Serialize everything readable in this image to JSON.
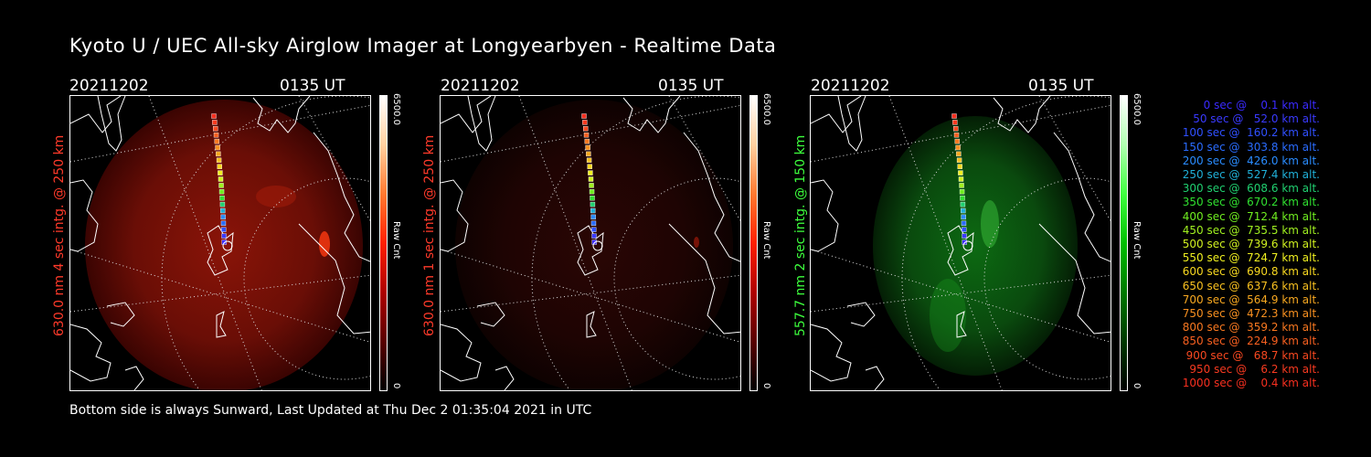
{
  "title": "Kyoto U / UEC All-sky Airglow Imager at Longyearbyen - Realtime Data",
  "footer": "Bottom side is always Sunward, Last Updated at Thu Dec  2 01:35:04 2021 in UTC",
  "panels": [
    {
      "date": "20211202",
      "time": "0135 UT",
      "axis_label": "630.0 nm 4 sec intg. @ 250 km",
      "label_color": "#ff3a2a",
      "cbar_max": "6500.0",
      "cbar_unit": "Raw Cnt",
      "cbar_min": "0",
      "glow": "red-strong"
    },
    {
      "date": "20211202",
      "time": "0135 UT",
      "axis_label": "630.0 nm 1 sec intg. @ 250 km",
      "label_color": "#ff3a2a",
      "cbar_max": "6500.0",
      "cbar_unit": "Raw Cnt",
      "cbar_min": "0",
      "glow": "red-faint"
    },
    {
      "date": "20211202",
      "time": "0135 UT",
      "axis_label": "557.7 nm 2 sec intg. @ 150 km",
      "label_color": "#3dff3d",
      "cbar_max": "6500.0",
      "cbar_unit": "Raw Cnt",
      "cbar_min": "0",
      "glow": "green"
    }
  ],
  "colors": {
    "red_colorbar": [
      "#000000",
      "#5a0000",
      "#b00000",
      "#ff2000",
      "#ff7a30",
      "#ffd2a0",
      "#ffffff"
    ],
    "green_colorbar": [
      "#000000",
      "#003a00",
      "#007a00",
      "#00c000",
      "#40ff40",
      "#b0ffb0",
      "#ffffff"
    ]
  },
  "legend": [
    {
      "text": "   0 sec @    0.1 km alt.",
      "color": "#3a2aff"
    },
    {
      "text": "  50 sec @   52.0 km alt.",
      "color": "#3a3aff"
    },
    {
      "text": " 100 sec @  160.2 km alt.",
      "color": "#3050ff"
    },
    {
      "text": " 150 sec @  303.8 km alt.",
      "color": "#2a6cff"
    },
    {
      "text": " 200 sec @  426.0 km alt.",
      "color": "#2a8cff"
    },
    {
      "text": " 250 sec @  527.4 km alt.",
      "color": "#20b0d8"
    },
    {
      "text": " 300 sec @  608.6 km alt.",
      "color": "#20d070"
    },
    {
      "text": " 350 sec @  670.2 km alt.",
      "color": "#30e030"
    },
    {
      "text": " 400 sec @  712.4 km alt.",
      "color": "#70ee20"
    },
    {
      "text": " 450 sec @  735.5 km alt.",
      "color": "#a0f020"
    },
    {
      "text": " 500 sec @  739.6 km alt.",
      "color": "#d0f020"
    },
    {
      "text": " 550 sec @  724.7 km alt.",
      "color": "#f0f020"
    },
    {
      "text": " 600 sec @  690.8 km alt.",
      "color": "#f8d820"
    },
    {
      "text": " 650 sec @  637.6 km alt.",
      "color": "#f8c020"
    },
    {
      "text": " 700 sec @  564.9 km alt.",
      "color": "#f8a820"
    },
    {
      "text": " 750 sec @  472.3 km alt.",
      "color": "#f89020"
    },
    {
      "text": " 800 sec @  359.2 km alt.",
      "color": "#f87820"
    },
    {
      "text": " 850 sec @  224.9 km alt.",
      "color": "#f86020"
    },
    {
      "text": " 900 sec @   68.7 km alt.",
      "color": "#f84820"
    },
    {
      "text": " 950 sec @    6.2 km alt.",
      "color": "#f83a20"
    },
    {
      "text": "1000 sec @    0.4 km alt.",
      "color": "#f83020"
    }
  ]
}
